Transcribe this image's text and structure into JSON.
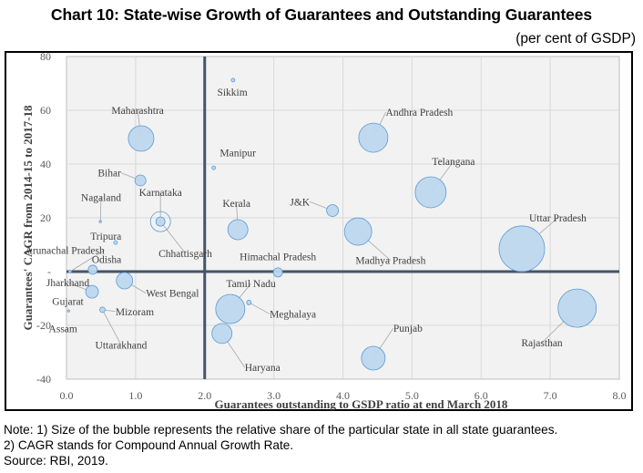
{
  "header": {
    "title": "Chart 10: State-wise Growth of Guarantees and Outstanding Guarantees",
    "unit": "(per cent of GSDP)"
  },
  "notes": [
    "Note: 1) Size of the bubble represents the relative share of the particular state in all state guarantees.",
    "2) CAGR stands for Compound Annual Growth Rate.",
    "Source: RBI, 2019."
  ],
  "colors": {
    "bubble_fill": "#bdd7ee",
    "bubble_stroke": "#5b9bd5",
    "plot_bg": "#f2f2f2",
    "grid": "#d9d9d9",
    "reference_line": "#44546a",
    "leader_line": "#a6a6a6",
    "text": "#404040"
  },
  "chart_data": {
    "type": "scatter",
    "subtype": "bubble",
    "title": "Chart 10: State-wise Growth of Guarantees and Outstanding Guarantees",
    "subtitle": "(per cent of GSDP)",
    "xlabel": "Guarantees outstanding to GSDP ratio at end March 2018",
    "ylabel": "Guarantees' CAGR from 2014-15 to 2017-18",
    "xlim": [
      0,
      8
    ],
    "ylim": [
      -40,
      80
    ],
    "xticks": [
      "0.0",
      "1.0",
      "2.0",
      "3.0",
      "4.0",
      "5.0",
      "6.0",
      "7.0",
      "8.0"
    ],
    "xtick_values": [
      0,
      1,
      2,
      3,
      4,
      5,
      6,
      7,
      8
    ],
    "yticks": [
      "80",
      "60",
      "40",
      "20",
      "-",
      "-20",
      "-40"
    ],
    "ytick_values": [
      80,
      60,
      40,
      20,
      0,
      -20,
      -40
    ],
    "grid": true,
    "reference_lines": {
      "x": 2.0,
      "y": 0
    },
    "size_note": "bubble size = relative share in all state guarantees (relative radius, largest = 1.0)",
    "points": [
      {
        "label": "Sikkim",
        "x": 2.41,
        "y": 71.2,
        "size": 0.08,
        "lx": 2.4,
        "ly": 65.5,
        "anchor": "middle"
      },
      {
        "label": "Maharashtra",
        "x": 1.08,
        "y": 49.5,
        "size": 0.56,
        "lx": 1.03,
        "ly": 58.6,
        "anchor": "middle",
        "leader": true
      },
      {
        "label": "Manipur",
        "x": 2.13,
        "y": 38.6,
        "size": 0.08,
        "lx": 2.48,
        "ly": 42.8,
        "anchor": "middle"
      },
      {
        "label": "Andhra Pradesh",
        "x": 4.44,
        "y": 49.8,
        "size": 0.64,
        "lx": 4.62,
        "ly": 57.9,
        "anchor": "start",
        "leader": true
      },
      {
        "label": "Bihar",
        "x": 1.07,
        "y": 33.9,
        "size": 0.24,
        "lx": 0.79,
        "ly": 35.4,
        "anchor": "end",
        "leader": true
      },
      {
        "label": "Telangana",
        "x": 5.27,
        "y": 29.5,
        "size": 0.68,
        "lx": 5.6,
        "ly": 39.6,
        "anchor": "middle",
        "leader": true
      },
      {
        "label": "Nagaland",
        "x": 0.49,
        "y": 18.6,
        "size": 0.02,
        "lx": 0.5,
        "ly": 26.3,
        "anchor": "middle",
        "leader": true
      },
      {
        "label": "Karnataka",
        "x": 1.36,
        "y": 18.6,
        "size": 0.44,
        "lx": 1.36,
        "ly": 28.1,
        "anchor": "middle",
        "leader": true,
        "ring": true
      },
      {
        "label": "Chhattisgarh",
        "x": 1.36,
        "y": 18.6,
        "size": 0.2,
        "lx": 1.72,
        "ly": 5.5,
        "anchor": "middle",
        "leader": true
      },
      {
        "label": "Kerala",
        "x": 2.48,
        "y": 15.6,
        "size": 0.44,
        "lx": 2.46,
        "ly": 24.0,
        "anchor": "middle",
        "leader": true
      },
      {
        "label": "J&K",
        "x": 3.85,
        "y": 22.7,
        "size": 0.26,
        "lx": 3.52,
        "ly": 24.6,
        "anchor": "end",
        "leader": true
      },
      {
        "label": "Madhya Pradesh",
        "x": 4.22,
        "y": 14.9,
        "size": 0.6,
        "lx": 4.69,
        "ly": 2.8,
        "anchor": "middle",
        "leader": true
      },
      {
        "label": "Uttar Pradesh",
        "x": 6.59,
        "y": 8.5,
        "size": 1.0,
        "lx": 7.11,
        "ly": 18.6,
        "anchor": "middle",
        "leader": true
      },
      {
        "label": "Tripura",
        "x": 0.71,
        "y": 10.8,
        "size": 0.08,
        "lx": 0.57,
        "ly": 11.8,
        "anchor": "middle"
      },
      {
        "label": "Arunachal Pradesh",
        "x": 0.05,
        "y": 0.0,
        "size": 0.06,
        "lx": 0.55,
        "ly": 6.6,
        "anchor": "end",
        "leader": true
      },
      {
        "label": "Odisha",
        "x": 0.38,
        "y": 0.7,
        "size": 0.2,
        "lx": 0.58,
        "ly": 3.2,
        "anchor": "middle"
      },
      {
        "label": "Himachal Pradesh",
        "x": 3.06,
        "y": -0.3,
        "size": 0.2,
        "lx": 3.06,
        "ly": 4.2,
        "anchor": "middle"
      },
      {
        "label": "West Bengal",
        "x": 0.84,
        "y": -3.4,
        "size": 0.36,
        "lx": 1.15,
        "ly": -9.4,
        "anchor": "start",
        "leader": true
      },
      {
        "label": "Jharkhand",
        "x": 0.37,
        "y": -7.5,
        "size": 0.28,
        "lx": 0.02,
        "ly": -5.5,
        "anchor": "middle",
        "leader": true
      },
      {
        "label": "Gujarat",
        "x": 0.03,
        "y": -14.6,
        "size": 0.04,
        "lx": 0.02,
        "ly": -12.4,
        "anchor": "middle"
      },
      {
        "label": "Mizoram",
        "x": 0.52,
        "y": -14.2,
        "size": 0.12,
        "lx": 0.71,
        "ly": -16.2,
        "anchor": "start",
        "leader": true
      },
      {
        "label": "Assam",
        "x": 0.0,
        "y": -20.0,
        "size": 0.0,
        "lx": -0.05,
        "ly": -22.5,
        "anchor": "middle"
      },
      {
        "label": "Uttarakhand",
        "x": 0.52,
        "y": -14.2,
        "size": 0.0,
        "lx": 0.79,
        "ly": -28.6,
        "anchor": "middle",
        "leader": true
      },
      {
        "label": "Tamil Nadu",
        "x": 2.37,
        "y": -13.9,
        "size": 0.64,
        "lx": 2.67,
        "ly": -5.8,
        "anchor": "middle",
        "leader": true
      },
      {
        "label": "Meghalaya",
        "x": 2.64,
        "y": -11.5,
        "size": 0.1,
        "lx": 2.94,
        "ly": -17.1,
        "anchor": "start",
        "leader": true
      },
      {
        "label": "Haryana",
        "x": 2.25,
        "y": -23.0,
        "size": 0.44,
        "lx": 2.58,
        "ly": -37.0,
        "anchor": "start",
        "leader": true
      },
      {
        "label": "Punjab",
        "x": 4.44,
        "y": -32.2,
        "size": 0.52,
        "lx": 4.73,
        "ly": -22.4,
        "anchor": "start",
        "leader": true
      },
      {
        "label": "Rajasthan",
        "x": 7.39,
        "y": -13.6,
        "size": 0.84,
        "lx": 6.88,
        "ly": -27.8,
        "anchor": "middle",
        "leader": true
      }
    ]
  }
}
